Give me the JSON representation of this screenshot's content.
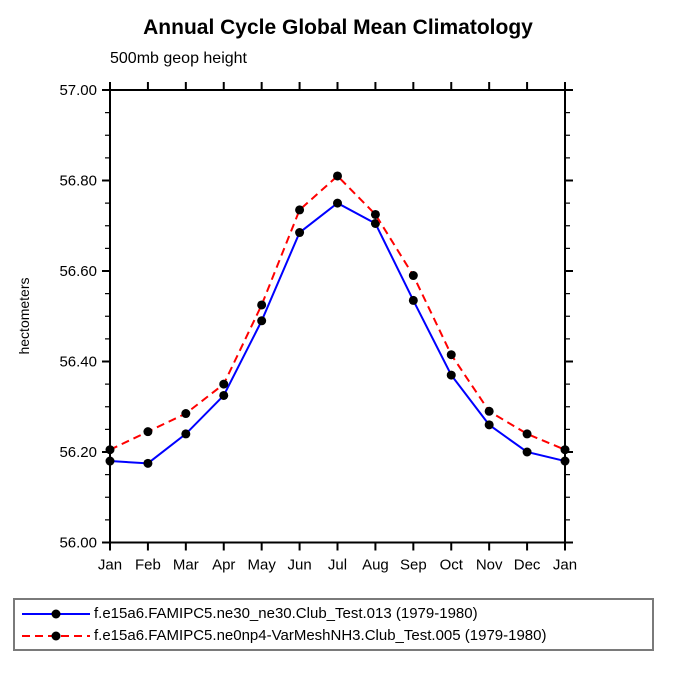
{
  "header": {
    "title": "Annual Cycle Global Mean Climatology",
    "subtitle": "500mb geop height"
  },
  "chart_data": {
    "type": "line",
    "title": "Annual Cycle Global Mean Climatology",
    "subtitle": "500mb geop height",
    "xlabel": "",
    "ylabel": "hectometers",
    "categories": [
      "Jan",
      "Feb",
      "Mar",
      "Apr",
      "May",
      "Jun",
      "Jul",
      "Aug",
      "Sep",
      "Oct",
      "Nov",
      "Dec",
      "Jan"
    ],
    "ylim": [
      56.0,
      57.0
    ],
    "ytick_major_labels": [
      "56.00",
      "56.20",
      "56.40",
      "56.60",
      "56.80",
      "57.00"
    ],
    "ytick_major_values": [
      56.0,
      56.2,
      56.4,
      56.6,
      56.8,
      57.0
    ],
    "ytick_minor_step": 0.05,
    "grid": false,
    "legend_position": "bottom-left",
    "marker_color": "#000000",
    "axis_color": "#000000",
    "series": [
      {
        "name": "f.e15a6.FAMIPC5.ne30_ne30.Club_Test.013 (1979-1980)",
        "color": "#0000ff",
        "line_style": "solid",
        "marker": "filled-circle",
        "values": [
          56.18,
          56.175,
          56.24,
          56.325,
          56.49,
          56.685,
          56.75,
          56.705,
          56.535,
          56.37,
          56.26,
          56.2,
          56.18
        ]
      },
      {
        "name": "f.e15a6.FAMIPC5.ne0np4-VarMeshNH3.Club_Test.005 (1979-1980)",
        "color": "#ff0000",
        "line_style": "dashed",
        "marker": "filled-circle",
        "values": [
          56.205,
          56.245,
          56.285,
          56.35,
          56.525,
          56.735,
          56.81,
          56.725,
          56.59,
          56.415,
          56.29,
          56.24,
          56.205
        ]
      }
    ]
  }
}
